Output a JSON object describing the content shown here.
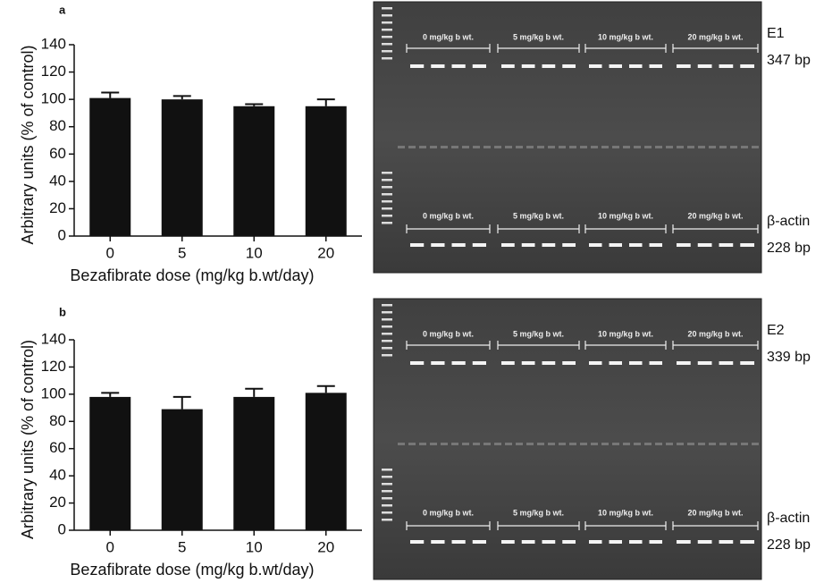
{
  "chart_data": [
    {
      "type": "bar",
      "panel": "a",
      "categories": [
        "0",
        "5",
        "10",
        "20"
      ],
      "series": [
        {
          "color": "#111111",
          "values": [
            101,
            100,
            95,
            95
          ],
          "errors": [
            4,
            2.5,
            1.5,
            5
          ]
        }
      ],
      "ylim": [
        0,
        140
      ],
      "yticks": [
        0,
        20,
        40,
        60,
        80,
        100,
        120,
        140
      ],
      "ylabel": "Arbitrary units (% of control)",
      "xlabel": "Bezafibrate dose (mg/kg b.wt/day)",
      "gel": {
        "lanes_top": [
          "0 mg/kg b wt.",
          "5 mg/kg b wt.",
          "10 mg/kg b wt.",
          "20 mg/kg b wt."
        ],
        "lanes_bottom": [
          "0 mg/kg b wt.",
          "5 mg/kg b wt.",
          "10 mg/kg b wt.",
          "20 mg/kg b wt."
        ],
        "gene": "E1",
        "gene_size": "347 bp",
        "control": "β-actin",
        "control_size": "228 bp"
      }
    },
    {
      "type": "bar",
      "panel": "b",
      "categories": [
        "0",
        "5",
        "10",
        "20"
      ],
      "series": [
        {
          "color": "#111111",
          "values": [
            98,
            89,
            98,
            101
          ],
          "errors": [
            3,
            9,
            6,
            5
          ]
        }
      ],
      "ylim": [
        0,
        140
      ],
      "yticks": [
        0,
        20,
        40,
        60,
        80,
        100,
        120,
        140
      ],
      "ylabel": "Arbitrary units (% of control)",
      "xlabel": "Bezafibrate dose (mg/kg b.wt/day)",
      "gel": {
        "lanes_top": [
          "0 mg/kg b wt.",
          "5 mg/kg b wt.",
          "10 mg/kg b wt.",
          "20 mg/kg b wt."
        ],
        "lanes_bottom": [
          "0 mg/kg b wt.",
          "5 mg/kg b wt.",
          "10 mg/kg b wt.",
          "20 mg/kg b wt."
        ],
        "gene": "E2",
        "gene_size": "339 bp",
        "control": "β-actin",
        "control_size": "228 bp"
      }
    }
  ]
}
